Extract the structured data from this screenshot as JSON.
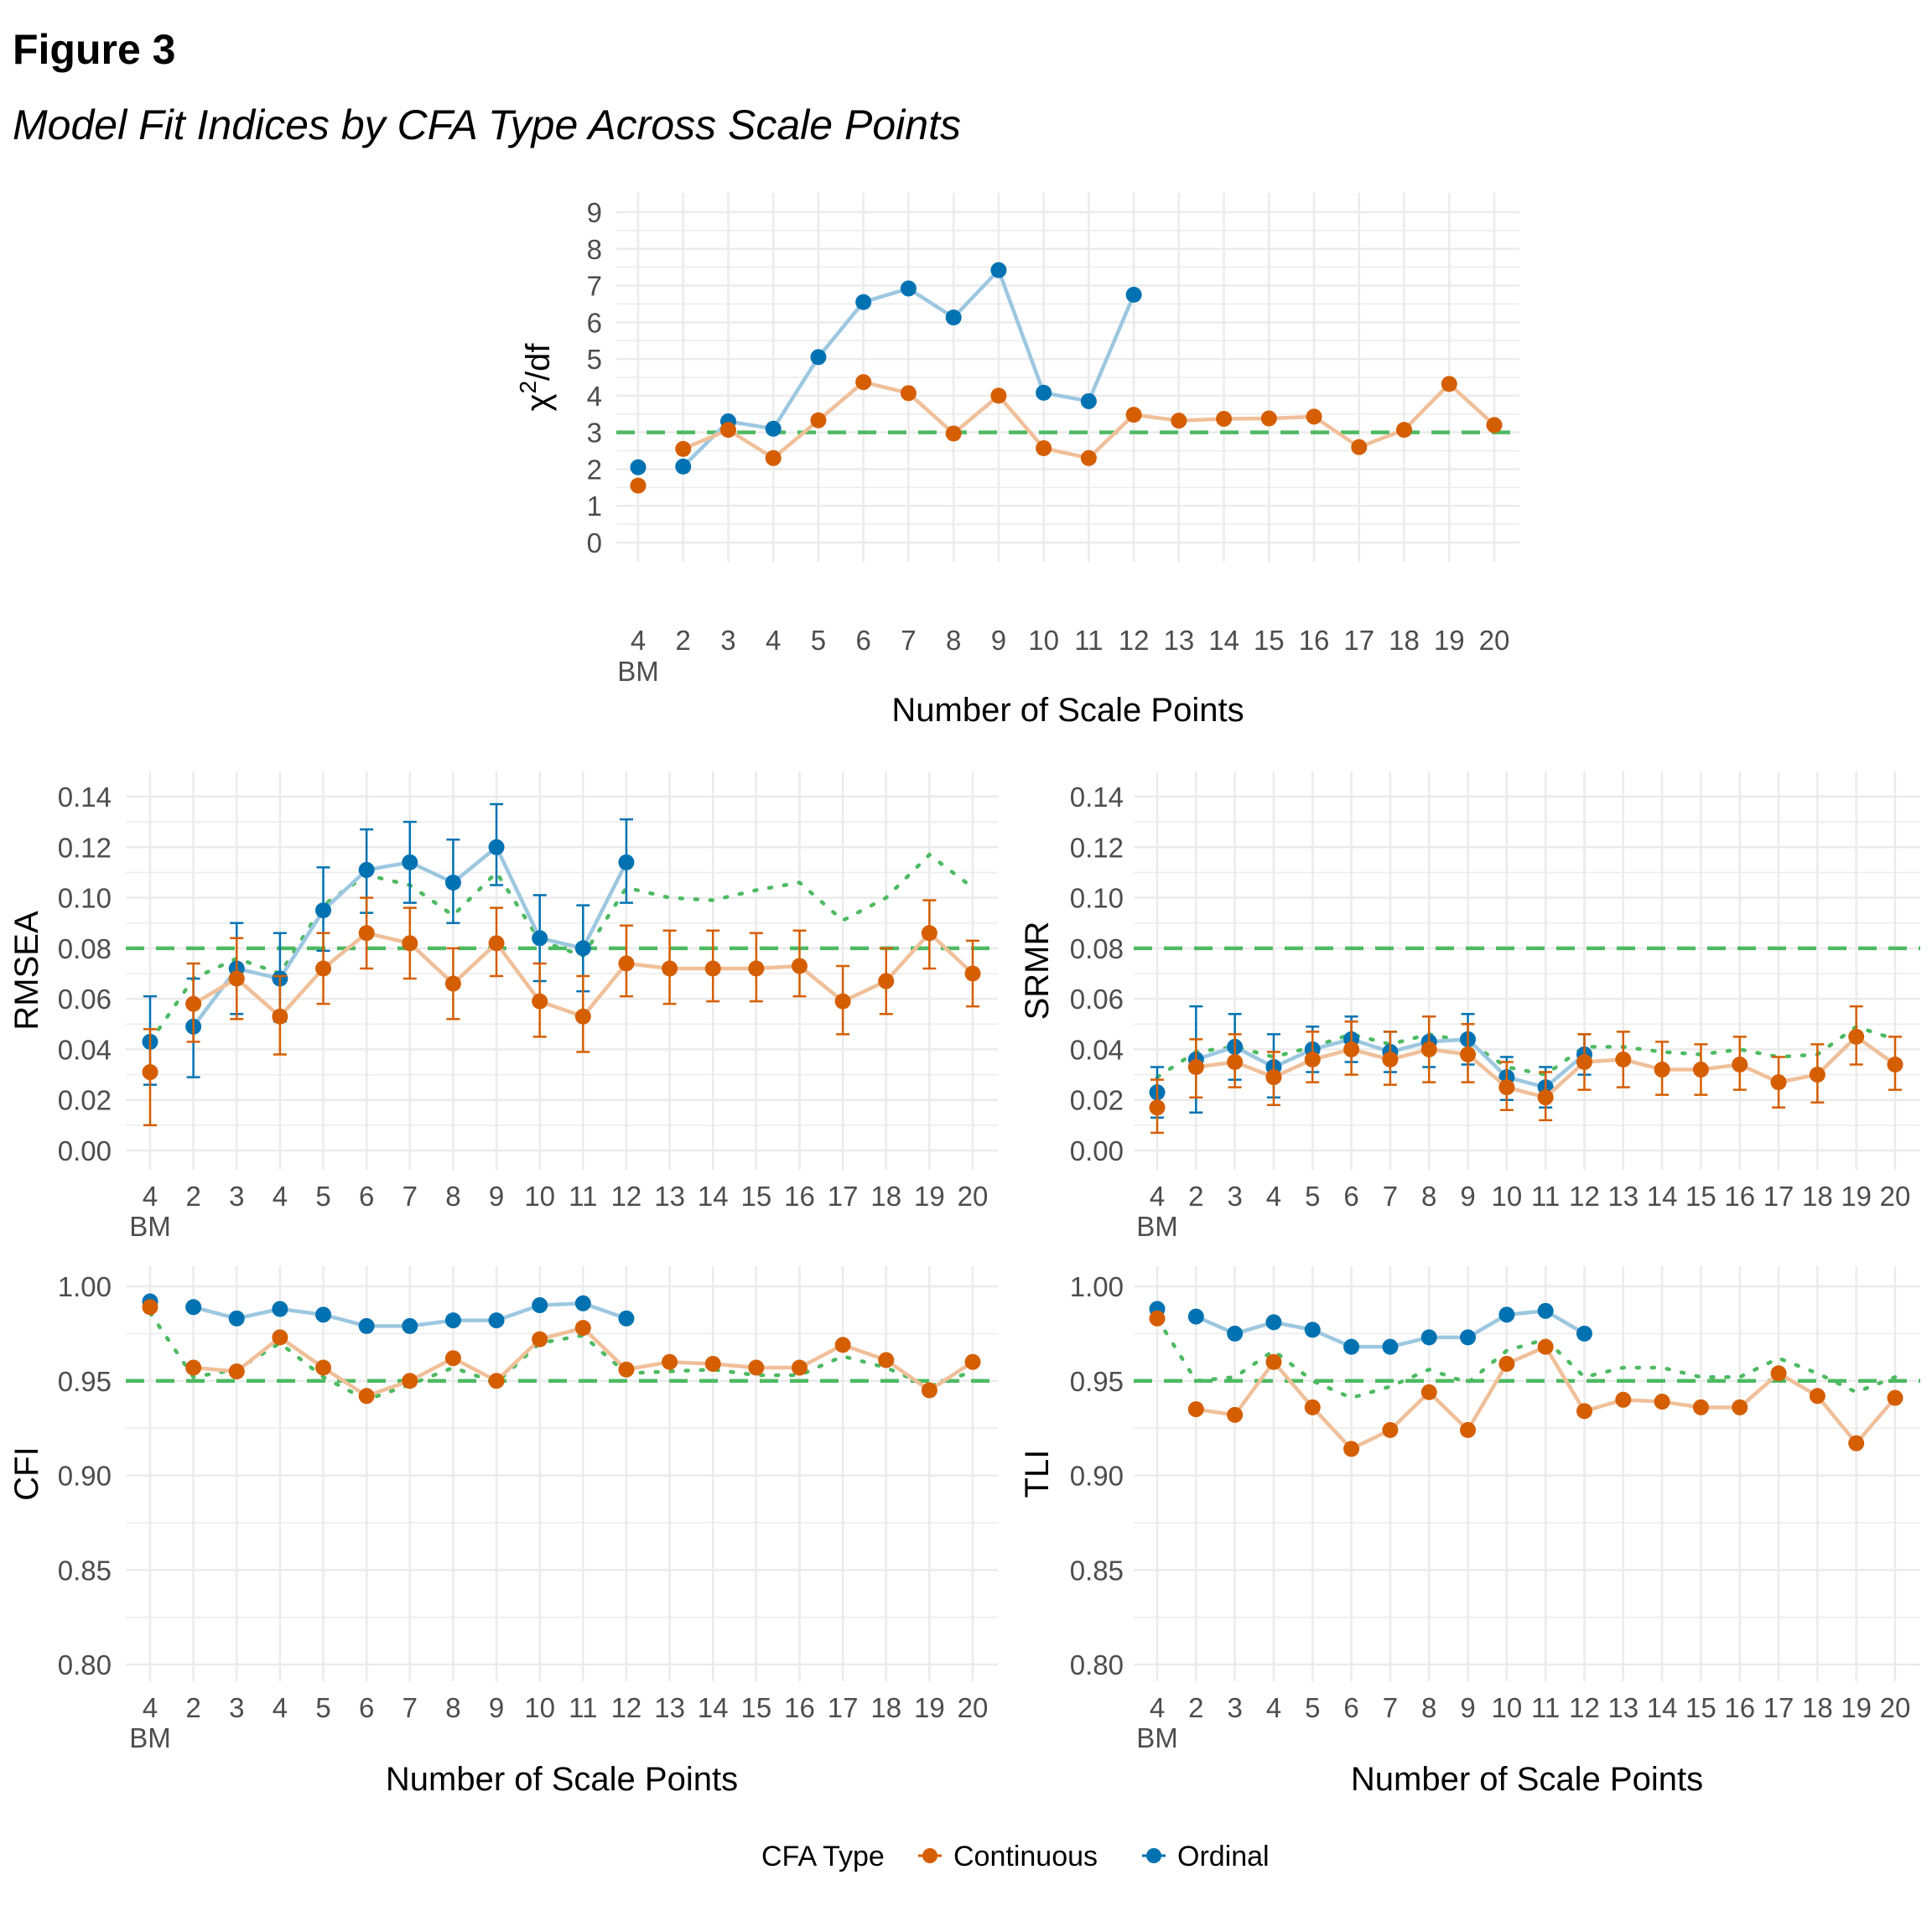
{
  "figure_label": "Figure 3",
  "figure_title": "Model Fit Indices by CFA Type Across Scale Points",
  "legend": {
    "title": "CFA Type",
    "items": [
      {
        "name": "Continuous",
        "color": "#D55E00",
        "line_color": "#F0BF99"
      },
      {
        "name": "Ordinal",
        "color": "#0072B2",
        "line_color": "#9CC7E0"
      }
    ]
  },
  "colors": {
    "threshold": "#4DBA61",
    "dotted": "#4DBA61",
    "grid": "#EBEBEB"
  },
  "chart_data": [
    {
      "id": "chisq",
      "type": "line",
      "ylabel": "χ2/df",
      "xlabel": "Number of Scale Points",
      "categories": [
        "4\nBM",
        "2",
        "3",
        "4",
        "5",
        "6",
        "7",
        "8",
        "9",
        "10",
        "11",
        "12",
        "13",
        "14",
        "15",
        "16",
        "17",
        "18",
        "19",
        "20"
      ],
      "ylim": [
        0,
        9
      ],
      "yticks": [
        "0",
        "1",
        "2",
        "3",
        "4",
        "5",
        "6",
        "7",
        "8",
        "9"
      ],
      "ytick_values": [
        0,
        1,
        2,
        3,
        4,
        5,
        6,
        7,
        8,
        9
      ],
      "threshold": 3,
      "series": [
        {
          "name": "Continuous",
          "values": [
            1.55,
            2.55,
            3.07,
            2.3,
            3.33,
            4.37,
            4.07,
            2.97,
            4.0,
            2.57,
            2.3,
            3.48,
            3.32,
            3.37,
            3.38,
            3.43,
            2.6,
            3.07,
            4.32,
            3.2
          ]
        },
        {
          "name": "Ordinal",
          "values": [
            2.05,
            2.07,
            3.3,
            3.1,
            5.05,
            6.55,
            6.92,
            6.13,
            7.42,
            4.08,
            3.85,
            6.75,
            null,
            null,
            null,
            null,
            null,
            null,
            null,
            null
          ]
        }
      ]
    },
    {
      "id": "rmsea",
      "type": "line",
      "ylabel": "RMSEA",
      "xlabel": "",
      "categories": [
        "4\nBM",
        "2",
        "3",
        "4",
        "5",
        "6",
        "7",
        "8",
        "9",
        "10",
        "11",
        "12",
        "13",
        "14",
        "15",
        "16",
        "17",
        "18",
        "19",
        "20"
      ],
      "ylim": [
        0,
        0.14
      ],
      "yticks": [
        "0.00",
        "0.02",
        "0.04",
        "0.06",
        "0.08",
        "0.10",
        "0.12",
        "0.14"
      ],
      "ytick_values": [
        0,
        0.02,
        0.04,
        0.06,
        0.08,
        0.1,
        0.12,
        0.14
      ],
      "threshold": 0.08,
      "series": [
        {
          "name": "Continuous",
          "values": [
            0.031,
            0.058,
            0.068,
            0.053,
            0.072,
            0.086,
            0.082,
            0.066,
            0.082,
            0.059,
            0.053,
            0.074,
            0.072,
            0.072,
            0.072,
            0.073,
            0.059,
            0.067,
            0.086,
            0.07
          ],
          "lower": [
            0.01,
            0.043,
            0.052,
            0.038,
            0.058,
            0.072,
            0.068,
            0.052,
            0.069,
            0.045,
            0.039,
            0.061,
            0.058,
            0.059,
            0.059,
            0.061,
            0.046,
            0.054,
            0.072,
            0.057
          ],
          "upper": [
            0.048,
            0.074,
            0.084,
            0.069,
            0.086,
            0.1,
            0.096,
            0.08,
            0.096,
            0.074,
            0.069,
            0.089,
            0.087,
            0.087,
            0.086,
            0.087,
            0.073,
            0.08,
            0.099,
            0.083
          ]
        },
        {
          "name": "Ordinal",
          "values": [
            0.043,
            0.049,
            0.072,
            0.068,
            0.095,
            0.111,
            0.114,
            0.106,
            0.12,
            0.084,
            0.08,
            0.114,
            null,
            null,
            null,
            null,
            null,
            null,
            null,
            null
          ],
          "lower": [
            0.026,
            0.029,
            0.054,
            0.051,
            0.079,
            0.094,
            0.098,
            0.09,
            0.105,
            0.067,
            0.063,
            0.098,
            null,
            null,
            null,
            null,
            null,
            null,
            null,
            null
          ],
          "upper": [
            0.061,
            0.068,
            0.09,
            0.086,
            0.112,
            0.127,
            0.13,
            0.123,
            0.137,
            0.101,
            0.097,
            0.131,
            null,
            null,
            null,
            null,
            null,
            null,
            null,
            null
          ]
        },
        {
          "name": "dotted",
          "values": [
            0.043,
            0.068,
            0.076,
            0.07,
            0.097,
            0.109,
            0.105,
            0.093,
            0.11,
            0.083,
            0.077,
            0.104,
            0.1,
            0.099,
            0.103,
            0.106,
            0.091,
            0.1,
            0.117,
            0.104
          ]
        }
      ]
    },
    {
      "id": "srmr",
      "type": "line",
      "ylabel": "SRMR",
      "xlabel": "",
      "categories": [
        "4\nBM",
        "2",
        "3",
        "4",
        "5",
        "6",
        "7",
        "8",
        "9",
        "10",
        "11",
        "12",
        "13",
        "14",
        "15",
        "16",
        "17",
        "18",
        "19",
        "20"
      ],
      "ylim": [
        0,
        0.14
      ],
      "yticks": [
        "0.00",
        "0.02",
        "0.04",
        "0.06",
        "0.08",
        "0.10",
        "0.12",
        "0.14"
      ],
      "ytick_values": [
        0,
        0.02,
        0.04,
        0.06,
        0.08,
        0.1,
        0.12,
        0.14
      ],
      "threshold": 0.08,
      "series": [
        {
          "name": "Continuous",
          "values": [
            0.017,
            0.033,
            0.035,
            0.029,
            0.036,
            0.04,
            0.036,
            0.04,
            0.038,
            0.025,
            0.021,
            0.035,
            0.036,
            0.032,
            0.032,
            0.034,
            0.027,
            0.03,
            0.045,
            0.034
          ],
          "lower": [
            0.007,
            0.021,
            0.025,
            0.018,
            0.027,
            0.03,
            0.026,
            0.027,
            0.027,
            0.016,
            0.012,
            0.024,
            0.025,
            0.022,
            0.022,
            0.024,
            0.017,
            0.019,
            0.034,
            0.024
          ],
          "upper": [
            0.028,
            0.044,
            0.046,
            0.039,
            0.047,
            0.051,
            0.047,
            0.053,
            0.05,
            0.035,
            0.031,
            0.046,
            0.047,
            0.043,
            0.042,
            0.045,
            0.037,
            0.042,
            0.057,
            0.045
          ]
        },
        {
          "name": "Ordinal",
          "values": [
            0.023,
            0.036,
            0.041,
            0.033,
            0.04,
            0.044,
            0.039,
            0.043,
            0.044,
            0.029,
            0.025,
            0.038,
            null,
            null,
            null,
            null,
            null,
            null,
            null,
            null
          ],
          "lower": [
            0.013,
            0.015,
            0.028,
            0.021,
            0.031,
            0.035,
            0.031,
            0.033,
            0.034,
            0.02,
            0.017,
            0.03,
            null,
            null,
            null,
            null,
            null,
            null,
            null,
            null
          ],
          "upper": [
            0.033,
            0.057,
            0.054,
            0.046,
            0.049,
            0.053,
            0.047,
            0.053,
            0.054,
            0.037,
            0.033,
            0.046,
            null,
            null,
            null,
            null,
            null,
            null,
            null,
            null
          ]
        },
        {
          "name": "dotted",
          "values": [
            0.029,
            0.039,
            0.041,
            0.037,
            0.041,
            0.046,
            0.042,
            0.046,
            0.043,
            0.033,
            0.03,
            0.041,
            0.041,
            0.039,
            0.038,
            0.04,
            0.037,
            0.038,
            0.049,
            0.044
          ]
        }
      ]
    },
    {
      "id": "cfi",
      "type": "line",
      "ylabel": "CFI",
      "xlabel": "Number of Scale Points",
      "categories": [
        "4\nBM",
        "2",
        "3",
        "4",
        "5",
        "6",
        "7",
        "8",
        "9",
        "10",
        "11",
        "12",
        "13",
        "14",
        "15",
        "16",
        "17",
        "18",
        "19",
        "20"
      ],
      "ylim": [
        0.8,
        1.0
      ],
      "yticks": [
        "0.80",
        "0.85",
        "0.90",
        "0.95",
        "1.00"
      ],
      "ytick_values": [
        0.8,
        0.85,
        0.9,
        0.95,
        1.0
      ],
      "threshold": 0.95,
      "series": [
        {
          "name": "Continuous",
          "values": [
            0.989,
            0.957,
            0.955,
            0.973,
            0.957,
            0.942,
            0.95,
            0.962,
            0.95,
            0.972,
            0.978,
            0.956,
            0.96,
            0.959,
            0.957,
            0.957,
            0.969,
            0.961,
            0.945,
            0.96
          ]
        },
        {
          "name": "Ordinal",
          "values": [
            0.992,
            0.989,
            0.983,
            0.988,
            0.985,
            0.979,
            0.979,
            0.982,
            0.982,
            0.99,
            0.991,
            0.983,
            null,
            null,
            null,
            null,
            null,
            null,
            null,
            null
          ]
        },
        {
          "name": "dotted",
          "values": [
            0.986,
            0.952,
            0.956,
            0.97,
            0.952,
            0.94,
            0.948,
            0.957,
            0.949,
            0.97,
            0.974,
            0.954,
            0.955,
            0.956,
            0.953,
            0.953,
            0.963,
            0.957,
            0.947,
            0.955
          ]
        }
      ]
    },
    {
      "id": "tli",
      "type": "line",
      "ylabel": "TLI",
      "xlabel": "Number of Scale Points",
      "categories": [
        "4\nBM",
        "2",
        "3",
        "4",
        "5",
        "6",
        "7",
        "8",
        "9",
        "10",
        "11",
        "12",
        "13",
        "14",
        "15",
        "16",
        "17",
        "18",
        "19",
        "20"
      ],
      "ylim": [
        0.8,
        1.0
      ],
      "yticks": [
        "0.80",
        "0.85",
        "0.90",
        "0.95",
        "1.00"
      ],
      "ytick_values": [
        0.8,
        0.85,
        0.9,
        0.95,
        1.0
      ],
      "threshold": 0.95,
      "series": [
        {
          "name": "Continuous",
          "values": [
            0.983,
            0.935,
            0.932,
            0.96,
            0.936,
            0.914,
            0.924,
            0.944,
            0.924,
            0.959,
            0.968,
            0.934,
            0.94,
            0.939,
            0.936,
            0.936,
            0.954,
            0.942,
            0.917,
            0.941
          ]
        },
        {
          "name": "Ordinal",
          "values": [
            0.988,
            0.984,
            0.975,
            0.981,
            0.977,
            0.968,
            0.968,
            0.973,
            0.973,
            0.985,
            0.987,
            0.975,
            null,
            null,
            null,
            null,
            null,
            null,
            null,
            null
          ]
        },
        {
          "name": "dotted",
          "values": [
            0.983,
            0.95,
            0.952,
            0.966,
            0.95,
            0.941,
            0.947,
            0.956,
            0.949,
            0.966,
            0.972,
            0.952,
            0.957,
            0.957,
            0.952,
            0.952,
            0.962,
            0.954,
            0.944,
            0.952
          ]
        }
      ]
    }
  ]
}
